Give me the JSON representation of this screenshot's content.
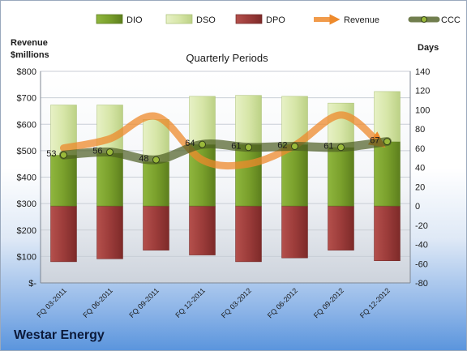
{
  "company_name": "Westar Energy",
  "chart_data": {
    "type": "bar",
    "title": "Quarterly Periods",
    "left_axis_label": [
      "Revenue",
      "$millions"
    ],
    "right_axis_label": "Days",
    "categories": [
      "FQ 03-2011",
      "FQ 06-2011",
      "FQ 09-2011",
      "FQ 12-2011",
      "FQ 03-2012",
      "FQ 06-2012",
      "FQ 09-2012",
      "FQ 12-2012"
    ],
    "left_axis": {
      "min": 0,
      "max": 800,
      "step": 100,
      "tick_labels": [
        "$-",
        "$100",
        "$200",
        "$300",
        "$400",
        "$500",
        "$600",
        "$700",
        "$800"
      ]
    },
    "right_axis": {
      "min": -80,
      "max": 140,
      "step": 20
    },
    "series": [
      {
        "name": "DIO",
        "kind": "stacked-bar-positive",
        "values": [
          53,
          55,
          46,
          64,
          64,
          64,
          61,
          67
        ],
        "color": "#7aa02c"
      },
      {
        "name": "DSO",
        "kind": "stacked-bar-positive",
        "values": [
          52,
          50,
          44,
          50,
          51,
          50,
          46,
          52
        ],
        "color": "#d7e6a8"
      },
      {
        "name": "DPO",
        "kind": "stacked-bar-negative",
        "values": [
          -58,
          -55,
          -46,
          -51,
          -58,
          -54,
          -46,
          -57
        ],
        "color": "#9c3c3a"
      },
      {
        "name": "Revenue",
        "kind": "line",
        "axis": "left",
        "values": [
          510,
          545,
          630,
          465,
          450,
          520,
          635,
          530
        ],
        "color": "#ee8a2c"
      },
      {
        "name": "CCC",
        "kind": "line",
        "axis": "right",
        "values": [
          53,
          56,
          48,
          64,
          61,
          62,
          61,
          67
        ],
        "data_labels": [
          "53",
          "56",
          "48",
          "64",
          "61",
          "62",
          "61",
          "67"
        ],
        "color": "#4d5e22"
      }
    ],
    "legend_position": "top",
    "grid": true
  }
}
